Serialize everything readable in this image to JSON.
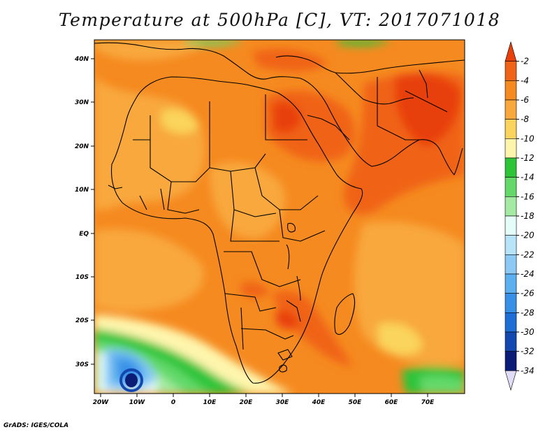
{
  "title": "Temperature at 500hPa [C], VT: 2017071018",
  "credit": "GrADS: IGES/COLA",
  "map": {
    "lon_ticks": [
      "20W",
      "10W",
      "0",
      "10E",
      "20E",
      "30E",
      "40E",
      "50E",
      "60E",
      "70E"
    ],
    "lat_ticks": [
      "40N",
      "30N",
      "20N",
      "10N",
      "EQ",
      "10S",
      "20S",
      "30S"
    ]
  },
  "colorbar": {
    "labels": [
      "-2",
      "-4",
      "-6",
      "-8",
      "-10",
      "-12",
      "-14",
      "-16",
      "-18",
      "-20",
      "-22",
      "-24",
      "-26",
      "-28",
      "-30",
      "-32",
      "-34"
    ],
    "colors": [
      "#e8400c",
      "#f06418",
      "#f58a20",
      "#f8a83c",
      "#fad45c",
      "#fef5ac",
      "#2ec43a",
      "#64d96a",
      "#a4eaa2",
      "#e6fcf8",
      "#b8e4fa",
      "#8ccaf5",
      "#5cb0ef",
      "#3890e6",
      "#1e6ed6",
      "#1248b0",
      "#0a1c76",
      "#e0dcf8"
    ]
  }
}
